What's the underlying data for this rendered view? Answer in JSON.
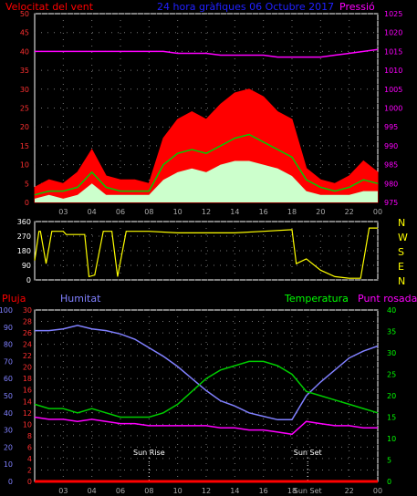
{
  "chart_data": [
    {
      "type": "line",
      "title": "24 hora gràfiques 06 Octubre 2017",
      "left_label": "Velocitat del vent",
      "right_label": "Pressió",
      "x_ticks": [
        "03",
        "04",
        "06",
        "08",
        "10",
        "12",
        "14",
        "16",
        "18",
        "20",
        "22",
        "00"
      ],
      "ylim_left": [
        0,
        50
      ],
      "y_ticks_left": [
        0,
        5,
        10,
        15,
        20,
        25,
        30,
        35,
        40,
        45,
        50
      ],
      "ylim_right": [
        975,
        1025
      ],
      "y_ticks_right": [
        975,
        980,
        985,
        990,
        995,
        1000,
        1005,
        1010,
        1015,
        1020,
        1025
      ],
      "x_hours": [
        0,
        1,
        2,
        3,
        4,
        5,
        6,
        7,
        8,
        9,
        10,
        11,
        12,
        13,
        14,
        15,
        16,
        17,
        18,
        19,
        20,
        21,
        22,
        23,
        24
      ],
      "series": [
        {
          "name": "gust",
          "color": "#ff0000",
          "values": [
            4,
            6,
            5,
            8,
            14,
            7,
            6,
            6,
            5,
            17,
            22,
            24,
            22,
            26,
            29,
            30,
            28,
            24,
            22,
            9,
            6,
            5,
            7,
            11,
            8
          ]
        },
        {
          "name": "avg_wind",
          "color": "#00cc00",
          "values": [
            2,
            3,
            3,
            4,
            8,
            4,
            3,
            3,
            3,
            10,
            13,
            14,
            13,
            15,
            17,
            18,
            16,
            14,
            12,
            6,
            4,
            3,
            4,
            6,
            5
          ]
        },
        {
          "name": "min_wind",
          "color": "#ccffcc",
          "values": [
            1,
            2,
            1,
            2,
            5,
            2,
            2,
            2,
            2,
            6,
            8,
            9,
            8,
            10,
            11,
            11,
            10,
            9,
            7,
            3,
            2,
            2,
            2,
            3,
            3
          ]
        },
        {
          "name": "pressure",
          "color": "#ff00ff",
          "values": [
            1015,
            1015,
            1015,
            1015,
            1015,
            1015,
            1015,
            1015,
            1015,
            1015,
            1014.5,
            1014.5,
            1014.5,
            1014,
            1014,
            1014,
            1014,
            1013.5,
            1013.5,
            1013.5,
            1013.5,
            1014,
            1014.5,
            1015,
            1015.5
          ]
        }
      ]
    },
    {
      "type": "line",
      "y_ticks": [
        0,
        90,
        180,
        270,
        360
      ],
      "ylim": [
        0,
        360
      ],
      "compass": [
        "N",
        "W",
        "S",
        "E",
        "N"
      ],
      "series": [
        {
          "name": "direction",
          "color": "#ffff00",
          "x": [
            0,
            0.3,
            0.4,
            0.8,
            1.2,
            2.0,
            2.2,
            3.5,
            3.8,
            4.2,
            4.8,
            5.4,
            5.8,
            6.4,
            8,
            10,
            12,
            14,
            16,
            18,
            18.3,
            19,
            20,
            21,
            22,
            22.8,
            23.4,
            24
          ],
          "values": [
            120,
            300,
            300,
            100,
            300,
            300,
            280,
            280,
            20,
            30,
            300,
            300,
            20,
            300,
            300,
            290,
            290,
            290,
            300,
            310,
            100,
            130,
            60,
            20,
            10,
            10,
            320,
            320
          ]
        }
      ]
    },
    {
      "type": "line",
      "left_labels": [
        "Pluja",
        "Humitat"
      ],
      "right_labels": [
        "Temperatura",
        "Punt rosada"
      ],
      "y_ticks_humidity": [
        0,
        10,
        20,
        30,
        40,
        50,
        60,
        70,
        80,
        90,
        100
      ],
      "ylim_humidity": [
        0,
        100
      ],
      "y_ticks_rain": [
        0,
        2,
        4,
        6,
        8,
        10,
        12,
        14,
        16,
        18,
        20,
        22,
        24,
        26,
        28,
        30
      ],
      "ylim_rain": [
        0,
        30
      ],
      "y_ticks_temp": [
        0,
        5,
        10,
        15,
        20,
        25,
        30,
        35,
        40
      ],
      "ylim_temp": [
        0,
        40
      ],
      "x_ticks": [
        "03",
        "04",
        "06",
        "08",
        "10",
        "12",
        "14",
        "16",
        "18",
        "Sun Set",
        "22",
        "00"
      ],
      "x_hours": [
        0,
        1,
        2,
        3,
        4,
        5,
        6,
        7,
        8,
        9,
        10,
        11,
        12,
        13,
        14,
        15,
        16,
        17,
        18,
        19,
        20,
        21,
        22,
        23,
        24
      ],
      "sunrise_label": "Sun Rise",
      "sunset_label": "Sun Set",
      "sunrise_hour": 8.0,
      "sunset_hour": 19.1,
      "series": [
        {
          "name": "Humitat",
          "color": "#8080ff",
          "values": [
            88,
            88,
            89,
            91,
            89,
            88,
            86,
            83,
            78,
            73,
            67,
            60,
            53,
            47,
            44,
            40,
            38,
            36,
            36,
            50,
            58,
            65,
            72,
            76,
            79
          ]
        },
        {
          "name": "Temperatura",
          "color": "#00cc00",
          "values": [
            18,
            17,
            17,
            16,
            17,
            16,
            15,
            15,
            15,
            16,
            18,
            21,
            24,
            26,
            27,
            28,
            28,
            27,
            25,
            21,
            20,
            19,
            18,
            17,
            16
          ]
        },
        {
          "name": "Punt rosada",
          "color": "#ff00ff",
          "values": [
            15,
            14.5,
            14.5,
            14,
            14.5,
            14,
            13.5,
            13.5,
            13,
            13,
            13,
            13,
            13,
            12.5,
            12.5,
            12,
            12,
            11.5,
            11,
            14,
            13.5,
            13,
            13,
            12.5,
            12.5
          ]
        },
        {
          "name": "Pluja",
          "color": "#ff0000",
          "values": [
            0,
            0,
            0,
            0,
            0,
            0,
            0,
            0,
            0,
            0,
            0,
            0,
            0,
            0,
            0,
            0,
            0,
            0,
            0,
            0,
            0,
            0,
            0,
            0,
            0
          ]
        }
      ]
    }
  ]
}
